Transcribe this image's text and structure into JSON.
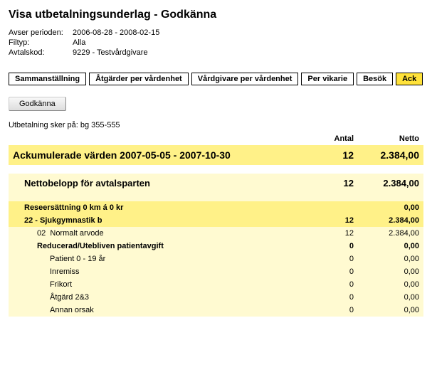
{
  "title": "Visa utbetalningsunderlag - Godkänna",
  "meta": {
    "period_label": "Avser perioden:",
    "period_value": "2006-08-28 - 2008-02-15",
    "filtyp_label": "Filtyp:",
    "filtyp_value": "Alla",
    "avtalskod_label": "Avtalskod:",
    "avtalskod_value": "9229 - Testvårdgivare"
  },
  "tabs": {
    "sammans": "Sammanställning",
    "atgarder": "Åtgärder per vårdenhet",
    "vardgivare": "Vårdgivare per vårdenhet",
    "vikarie": "Per vikarie",
    "besok": "Besök",
    "ack": "Ack"
  },
  "approve_button": "Godkänna",
  "pay_note": "Utbetalning sker på: bg 355-555",
  "headers": {
    "antal": "Antal",
    "netto": "Netto"
  },
  "rows": {
    "ack": {
      "label": "Ackumulerade värden 2007-05-05 - 2007-10-30",
      "antal": "12",
      "netto": "2.384,00"
    },
    "netto_part": {
      "label": "Nettobelopp för avtalsparten",
      "antal": "12",
      "netto": "2.384,00"
    },
    "rese": {
      "label": "Reseersättning 0 km á 0 kr",
      "antal": "",
      "netto": "0,00"
    },
    "sjuk": {
      "label": "22 - Sjukgymnastik b",
      "antal": "12",
      "netto": "2.384,00"
    },
    "normalt": {
      "code": "02",
      "label": "Normalt arvode",
      "antal": "12",
      "netto": "2.384,00"
    },
    "reducerad": {
      "label": "Reducerad/Utebliven patientavgift",
      "antal": "0",
      "netto": "0,00"
    },
    "p019": {
      "label": "Patient 0 - 19 år",
      "antal": "0",
      "netto": "0,00"
    },
    "inremiss": {
      "label": "Inremiss",
      "antal": "0",
      "netto": "0,00"
    },
    "frikort": {
      "label": "Frikort",
      "antal": "0",
      "netto": "0,00"
    },
    "atg23": {
      "label": "Åtgärd 2&3",
      "antal": "0",
      "netto": "0,00"
    },
    "annan": {
      "label": "Annan orsak",
      "antal": "0",
      "netto": "0,00"
    }
  },
  "colors": {
    "dark_yellow": "#fff188",
    "light_yellow": "#fffad1",
    "tab_active": "#ffe23a"
  }
}
